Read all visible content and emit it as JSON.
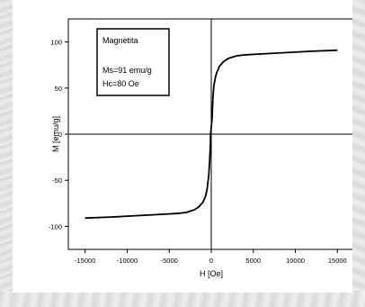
{
  "chart_data": {
    "type": "line",
    "title": "",
    "xlabel": "H [Oe]",
    "ylabel": "M [emu/g]",
    "xlim": [
      -17000,
      17000
    ],
    "ylim": [
      -125,
      125
    ],
    "xticks": [
      -15000,
      -10000,
      -5000,
      0,
      5000,
      10000,
      15000
    ],
    "xtick_labels": [
      "-15000",
      "-10000",
      "-5000",
      "0",
      "5000",
      "10000",
      "15000"
    ],
    "yticks": [
      -100,
      -50,
      0,
      50,
      100
    ],
    "ytick_labels": [
      "-100",
      "-50",
      "0",
      "50",
      "100"
    ],
    "grid": false,
    "zero_lines": true,
    "legend_position": "top-left",
    "annotation": {
      "title": "Magnetita",
      "lines": [
        "Ms=91 emu/g",
        "Hc=80 Oe"
      ]
    },
    "series": [
      {
        "color": "#000000",
        "x": [
          -15000,
          -12000,
          -10000,
          -8000,
          -6000,
          -4000,
          -3000,
          -2000,
          -1500,
          -1000,
          -700,
          -500,
          -300,
          -200,
          -100,
          -80,
          0,
          80,
          100,
          200,
          300,
          500,
          700,
          1000,
          1500,
          2000,
          3000,
          4000,
          6000,
          8000,
          10000,
          12000,
          15000
        ],
        "y": [
          -91,
          -90,
          -89,
          -88,
          -87,
          -86,
          -85,
          -82,
          -79,
          -74,
          -68,
          -60,
          -45,
          -30,
          -10,
          0,
          8,
          15,
          18,
          40,
          52,
          62,
          68,
          74,
          79,
          82,
          85,
          86,
          87,
          88,
          89,
          90,
          91
        ]
      }
    ]
  }
}
